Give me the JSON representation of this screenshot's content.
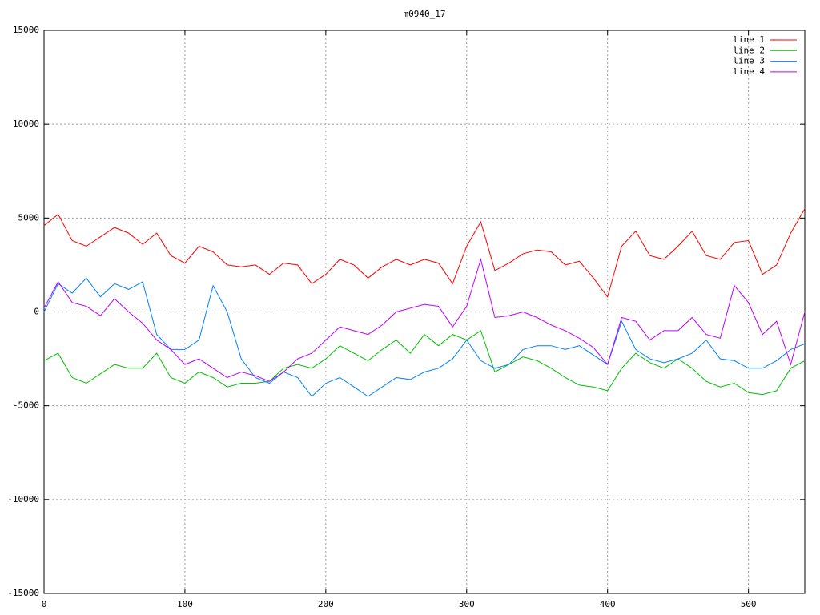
{
  "chart_data": {
    "type": "line",
    "title": "m0940_17",
    "x": [
      0,
      10,
      20,
      30,
      40,
      50,
      60,
      70,
      80,
      90,
      100,
      110,
      120,
      130,
      140,
      150,
      160,
      170,
      180,
      190,
      200,
      210,
      220,
      230,
      240,
      250,
      260,
      270,
      280,
      290,
      300,
      310,
      320,
      330,
      340,
      350,
      360,
      370,
      380,
      390,
      400,
      410,
      420,
      430,
      440,
      450,
      460,
      470,
      480,
      490,
      500,
      510,
      520,
      530,
      540
    ],
    "series": [
      {
        "name": "line 1",
        "color": "#ff0000",
        "values": [
          4600,
          5200,
          3800,
          3500,
          4000,
          4500,
          4200,
          3600,
          4200,
          3000,
          2600,
          3500,
          3200,
          2500,
          2400,
          2500,
          2000,
          2600,
          2500,
          1500,
          2000,
          2800,
          2500,
          1800,
          2400,
          2800,
          2500,
          2800,
          2600,
          1500,
          3500,
          4800,
          2200,
          2600,
          3100,
          3300,
          3200,
          2500,
          2700,
          1800,
          800,
          3500,
          4300,
          3000,
          2800,
          3500,
          4300,
          3000,
          2800,
          3700,
          3800,
          2000,
          2500,
          4200,
          5500
        ]
      },
      {
        "name": "line 2",
        "color": "#00c000",
        "values": [
          -2600,
          -2200,
          -3500,
          -3800,
          -3300,
          -2800,
          -3000,
          -3000,
          -2200,
          -3500,
          -3800,
          -3200,
          -3500,
          -4000,
          -3800,
          -3800,
          -3700,
          -3000,
          -2800,
          -3000,
          -2500,
          -1800,
          -2200,
          -2600,
          -2000,
          -1500,
          -2200,
          -1200,
          -1800,
          -1200,
          -1500,
          -1000,
          -3200,
          -2800,
          -2400,
          -2600,
          -3000,
          -3500,
          -3900,
          -4000,
          -4200,
          -3000,
          -2200,
          -2700,
          -3000,
          -2500,
          -3000,
          -3700,
          -4000,
          -3800,
          -4300,
          -4400,
          -4200,
          -3000,
          -2600
        ]
      },
      {
        "name": "line 3",
        "color": "#0080ff",
        "values": [
          0,
          1500,
          1000,
          1800,
          800,
          1500,
          1200,
          1600,
          -1200,
          -2000,
          -2000,
          -1500,
          1400,
          0,
          -2500,
          -3500,
          -3800,
          -3200,
          -3500,
          -4500,
          -3800,
          -3500,
          -4000,
          -4500,
          -4000,
          -3500,
          -3600,
          -3200,
          -3000,
          -2500,
          -1500,
          -2600,
          -3000,
          -2800,
          -2000,
          -1800,
          -1800,
          -2000,
          -1800,
          -2300,
          -2800,
          -500,
          -2000,
          -2500,
          -2700,
          -2500,
          -2200,
          -1500,
          -2500,
          -2600,
          -3000,
          -3000,
          -2600,
          -2000,
          -1700
        ]
      },
      {
        "name": "line 4",
        "color": "#c000ff",
        "values": [
          200,
          1600,
          500,
          300,
          -200,
          700,
          0,
          -600,
          -1500,
          -2000,
          -2800,
          -2500,
          -3000,
          -3500,
          -3200,
          -3400,
          -3700,
          -3200,
          -2500,
          -2200,
          -1500,
          -800,
          -1000,
          -1200,
          -700,
          0,
          200,
          400,
          300,
          -800,
          300,
          2800,
          -300,
          -200,
          0,
          -300,
          -700,
          -1000,
          -1400,
          -1900,
          -2800,
          -300,
          -500,
          -1500,
          -1000,
          -1000,
          -300,
          -1200,
          -1400,
          1400,
          500,
          -1200,
          -500,
          -2800,
          0
        ]
      }
    ],
    "xlim": [
      0,
      540
    ],
    "xticks": [
      0,
      100,
      200,
      300,
      400,
      500
    ],
    "ylim": [
      -15000,
      15000
    ],
    "yticks": [
      -15000,
      -10000,
      -5000,
      0,
      5000,
      10000,
      15000
    ],
    "grid": true,
    "legend": "top-right"
  }
}
